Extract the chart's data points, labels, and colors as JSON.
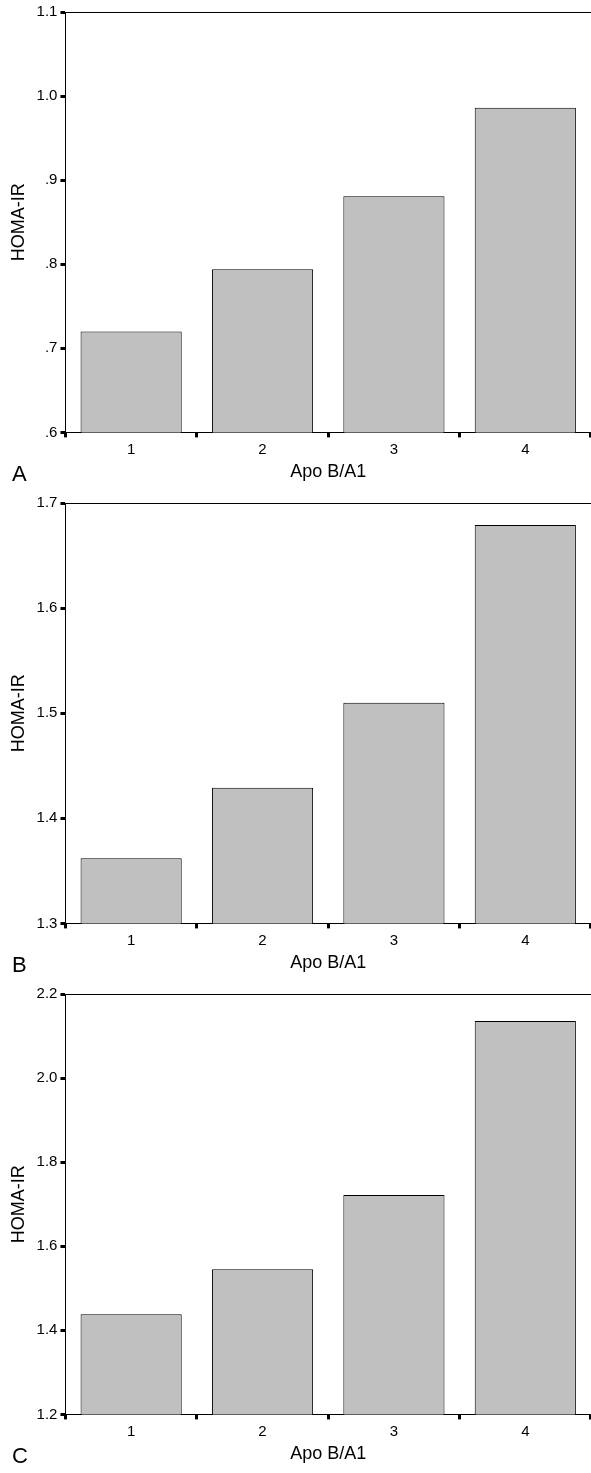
{
  "chart_data": [
    {
      "type": "bar",
      "categories": [
        "1",
        "2",
        "3",
        "4"
      ],
      "values": [
        0.72,
        0.794,
        0.881,
        0.986
      ],
      "color": "#c0c0c0",
      "xlabel": "Apo B/A1",
      "ylabel": "HOMA-IR",
      "ylim": [
        0.6,
        1.1
      ],
      "yticks": [
        {
          "value": 0.6,
          "label": ".6"
        },
        {
          "value": 0.7,
          "label": ".7"
        },
        {
          "value": 0.8,
          "label": ".8"
        },
        {
          "value": 0.9,
          "label": ".9"
        },
        {
          "value": 1.0,
          "label": "1.0"
        },
        {
          "value": 1.1,
          "label": "1.1"
        }
      ],
      "grid": false,
      "legend": false,
      "annotations": [
        "A"
      ]
    },
    {
      "type": "bar",
      "categories": [
        "1",
        "2",
        "3",
        "4"
      ],
      "values": [
        1.362,
        1.429,
        1.51,
        1.679
      ],
      "color": "#c0c0c0",
      "xlabel": "Apo B/A1",
      "ylabel": "HOMA-IR",
      "ylim": [
        1.3,
        1.7
      ],
      "yticks": [
        1.3,
        1.4,
        1.5,
        1.6,
        1.7
      ],
      "grid": false,
      "legend": false,
      "annotations": [
        "B"
      ]
    },
    {
      "type": "bar",
      "categories": [
        "1",
        "2",
        "3",
        "4"
      ],
      "values": [
        1.438,
        1.545,
        1.722,
        2.136
      ],
      "color": "#c0c0c0",
      "xlabel": "Apo B/A1",
      "ylabel": "HOMA-IR",
      "ylim": [
        1.2,
        2.2
      ],
      "yticks": [
        {
          "value": 1.2,
          "label": "1.2"
        },
        {
          "value": 1.4,
          "label": "1.4"
        },
        {
          "value": 1.6,
          "label": "1.6"
        },
        {
          "value": 1.8,
          "label": "1.8"
        },
        {
          "value": 2.0,
          "label": "2.0"
        },
        {
          "value": 2.2,
          "label": "2.2"
        }
      ],
      "grid": false,
      "legend": false,
      "annotations": [
        "C"
      ]
    }
  ]
}
